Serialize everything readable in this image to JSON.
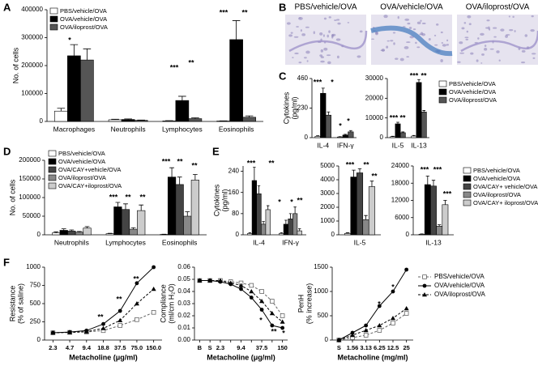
{
  "chart_data": [
    {
      "type": "bar",
      "panel": "A",
      "y_label": [
        "No. of cells"
      ],
      "categories": [
        "Macrophages",
        "Neutrophils",
        "Lymphocytes",
        "Eosinophils"
      ],
      "ylim": [
        0,
        400000
      ],
      "yticks": [
        0,
        100000,
        200000,
        300000,
        400000
      ],
      "series": [
        {
          "name": "PBS/vehicle/OVA",
          "color": "#ffffff",
          "values": [
            37000,
            6000,
            2000,
            1500
          ],
          "errors": [
            10000,
            2000,
            1000,
            500
          ]
        },
        {
          "name": "OVA/vehicle/OVA",
          "color": "#000000",
          "values": [
            235000,
            7000,
            75000,
            293000
          ],
          "errors": [
            40000,
            2000,
            15000,
            68000
          ]
        },
        {
          "name": "OVA/iloprost/OVA",
          "color": "#555555",
          "values": [
            220000,
            4000,
            10000,
            15000
          ],
          "errors": [
            40000,
            1000,
            3000,
            5000
          ]
        }
      ],
      "annotations": [
        "*",
        "***",
        "**",
        "***",
        "**"
      ]
    },
    {
      "type": "image",
      "panel": "B",
      "titles": [
        "PBS/vehicle/OVA",
        "OVA/vehicle/OVA",
        "OVA/iloprost/OVA"
      ]
    },
    {
      "type": "bar",
      "panel": "C",
      "y_label": [
        "Cytokines",
        "(pg/ml)"
      ],
      "categories": [
        "IL-4",
        "IFN-γ"
      ],
      "ylim": [
        0,
        460
      ],
      "yticks": [
        0,
        230,
        460
      ],
      "series": [
        {
          "color": "#ffffff",
          "values": [
            10,
            5
          ],
          "errors": [
            5,
            3
          ]
        },
        {
          "color": "#000000",
          "values": [
            345,
            20
          ],
          "errors": [
            40,
            6
          ]
        },
        {
          "color": "#555555",
          "values": [
            175,
            45
          ],
          "errors": [
            25,
            10
          ]
        }
      ],
      "annotations": [
        "***",
        "*",
        "*",
        "*"
      ]
    },
    {
      "type": "bar",
      "categories": [
        "IL-5",
        "IL-13"
      ],
      "ylim": [
        0,
        30000
      ],
      "yticks": [
        0,
        10000,
        20000,
        30000
      ],
      "series": [
        {
          "name": "PBS/vehicle/OVA",
          "color": "#ffffff",
          "values": [
            500,
            800
          ],
          "errors": [
            200,
            300
          ]
        },
        {
          "name": "OVA/vehicle/OVA",
          "color": "#000000",
          "values": [
            7000,
            28000
          ],
          "errors": [
            800,
            1500
          ]
        },
        {
          "name": "OVA/iloprost/OVA",
          "color": "#555555",
          "values": [
            2500,
            13000
          ],
          "errors": [
            400,
            800
          ]
        }
      ],
      "annotations": [
        "***",
        "**",
        "***",
        "**"
      ]
    },
    {
      "type": "bar",
      "panel": "D",
      "y_label": [
        "No. of cells"
      ],
      "categories": [
        "Neutrophils",
        "Lymphocytes",
        "Eosinophils"
      ],
      "ylim": [
        0,
        200000
      ],
      "yticks": [
        0,
        50000,
        100000,
        150000,
        200000
      ],
      "series": [
        {
          "name": "PBS/vehicle/OVA",
          "color": "#ffffff",
          "values": [
            5000,
            3000,
            1000
          ],
          "errors": [
            3000,
            1000,
            500
          ]
        },
        {
          "name": "OVA/vehicle/OVA",
          "color": "#000000",
          "values": [
            12000,
            75000,
            155000
          ],
          "errors": [
            4000,
            12000,
            25000
          ]
        },
        {
          "name": "OVA/CAY+vehicle/OVA",
          "color": "#444444",
          "values": [
            10000,
            68000,
            135000
          ],
          "errors": [
            3000,
            15000,
            20000
          ]
        },
        {
          "name": "OVA/iloprost/OVA",
          "color": "#888888",
          "values": [
            7000,
            15000,
            50000
          ],
          "errors": [
            2000,
            4000,
            12000
          ]
        },
        {
          "name": "OVA/CAY+iloprost/OVA",
          "color": "#cccccc",
          "values": [
            18000,
            65000,
            147000
          ],
          "errors": [
            4000,
            15000,
            15000
          ]
        }
      ],
      "annotations": [
        "***",
        "**",
        "**",
        "***",
        "**",
        "**"
      ]
    },
    {
      "type": "bar",
      "panel": "E",
      "y_label": [
        "Cytokines",
        "(pg/ml)"
      ],
      "categories": [
        "IL-4",
        "IFN-γ"
      ],
      "ylim": [
        0,
        260
      ],
      "yticks": [
        0,
        80,
        160,
        240
      ],
      "series": [
        {
          "color": "#ffffff",
          "values": [
            5,
            5
          ],
          "errors": [
            3,
            3
          ]
        },
        {
          "color": "#000000",
          "values": [
            205,
            40
          ],
          "errors": [
            50,
            15
          ]
        },
        {
          "color": "#444444",
          "values": [
            155,
            60
          ],
          "errors": [
            30,
            20
          ]
        },
        {
          "color": "#888888",
          "values": [
            40,
            80
          ],
          "errors": [
            10,
            25
          ]
        },
        {
          "color": "#cccccc",
          "values": [
            95,
            15
          ],
          "errors": [
            15,
            8
          ]
        }
      ],
      "annotations": [
        "***",
        "**",
        "**",
        "*",
        "*"
      ]
    },
    {
      "type": "bar",
      "categories": [
        "IL-5"
      ],
      "ylim": [
        0,
        5000
      ],
      "yticks": [
        0,
        1000,
        2000,
        3000,
        4000,
        5000
      ],
      "series": [
        {
          "color": "#ffffff",
          "values": [
            100
          ],
          "errors": [
            50
          ]
        },
        {
          "color": "#000000",
          "values": [
            4200
          ],
          "errors": [
            500
          ]
        },
        {
          "color": "#444444",
          "values": [
            4500
          ],
          "errors": [
            300
          ]
        },
        {
          "color": "#888888",
          "values": [
            1100
          ],
          "errors": [
            300
          ]
        },
        {
          "color": "#cccccc",
          "values": [
            3500
          ],
          "errors": [
            400
          ]
        }
      ],
      "annotations": [
        "***",
        "**",
        "**"
      ]
    },
    {
      "type": "bar",
      "categories": [
        "IL-13"
      ],
      "ylim": [
        0,
        24000
      ],
      "yticks": [
        0,
        6000,
        12000,
        18000,
        24000
      ],
      "series": [
        {
          "name": "PBS/vehicle/OVA",
          "color": "#ffffff",
          "values": [
            200
          ],
          "errors": [
            100
          ]
        },
        {
          "name": "OVA/vehicle/OVA",
          "color": "#000000",
          "values": [
            17500
          ],
          "errors": [
            3000
          ]
        },
        {
          "name": "OVA/CAY+ vehicle/OVA",
          "color": "#444444",
          "values": [
            17000
          ],
          "errors": [
            2000
          ]
        },
        {
          "name": "OVA/iloprost/OVA",
          "color": "#888888",
          "values": [
            3000
          ],
          "errors": [
            500
          ]
        },
        {
          "name": "OVA/CAY+ iloprost/OVA",
          "color": "#cccccc",
          "values": [
            10500
          ],
          "errors": [
            1500
          ]
        }
      ],
      "annotations": [
        "***",
        "***",
        "***"
      ]
    },
    {
      "type": "line",
      "panel": "F",
      "y_label": [
        "Resistance",
        "(% of saline)"
      ],
      "x_label": "Metacholine (μg/ml)",
      "categories": [
        "2.3",
        "4.7",
        "9.4",
        "18.8",
        "37.5",
        "75.0",
        "150.0"
      ],
      "ylim": [
        0,
        1000
      ],
      "yticks": [
        0,
        250,
        500,
        750,
        1000
      ],
      "series": [
        {
          "color": "#666666",
          "marker": "open-square",
          "dash": true,
          "values": [
            100,
            105,
            110,
            130,
            200,
            280,
            380
          ]
        },
        {
          "color": "#000000",
          "marker": "circle",
          "dash": false,
          "values": [
            100,
            110,
            130,
            220,
            400,
            780,
            1000
          ]
        },
        {
          "color": "#000000",
          "marker": "triangle",
          "dash": true,
          "values": [
            100,
            105,
            115,
            160,
            270,
            500,
            700
          ]
        }
      ],
      "annotations": [
        "**",
        "**",
        "**"
      ]
    },
    {
      "type": "line",
      "y_label": [
        "Compliance",
        "(ml/cm H₂O)"
      ],
      "x_label": "Metacholine (μg/ml)",
      "categories": [
        "B",
        "S",
        "2.3",
        null,
        "9.4",
        null,
        "37.5",
        null,
        "150"
      ],
      "ylim": [
        0,
        0.06
      ],
      "yticks": [
        {
          "value": 0,
          "label": "0.00"
        },
        {
          "value": 0.01,
          "label": "0.01"
        },
        {
          "value": 0.02,
          "label": "0.02"
        },
        {
          "value": 0.03,
          "label": "0.03"
        },
        {
          "value": 0.04,
          "label": "0.04"
        },
        {
          "value": 0.05,
          "label": "0.05"
        },
        {
          "value": 0.06,
          "label": "0.06"
        }
      ],
      "series": [
        {
          "color": "#666666",
          "marker": "open-square",
          "dash": true,
          "values": [
            0.049,
            0.049,
            0.049,
            0.048,
            0.047,
            0.045,
            0.04,
            0.032,
            0.02
          ]
        },
        {
          "color": "#000000",
          "marker": "circle",
          "dash": false,
          "values": [
            0.049,
            0.049,
            0.048,
            0.046,
            0.042,
            0.035,
            0.025,
            0.012,
            0.01
          ]
        },
        {
          "color": "#000000",
          "marker": "triangle",
          "dash": true,
          "values": [
            0.049,
            0.049,
            0.049,
            0.047,
            0.045,
            0.04,
            0.032,
            0.022,
            0.015
          ]
        }
      ],
      "annotations": [
        "*",
        "**",
        "*"
      ]
    },
    {
      "type": "line",
      "y_label": [
        "PenH",
        "(% increase)"
      ],
      "x_label": "Metacholine (mg/ml)",
      "categories": [
        "S",
        "1.56",
        "3.13",
        "6.25",
        "12.5",
        "25"
      ],
      "ylim": [
        0,
        1500
      ],
      "yticks": [
        0,
        500,
        1000,
        1500
      ],
      "series": [
        {
          "name": "PBS/vehicle/OVA",
          "color": "#666666",
          "marker": "open-square",
          "dash": true,
          "values": [
            0,
            50,
            100,
            200,
            350,
            550
          ]
        },
        {
          "name": "OVA/vehicle/OVA",
          "color": "#000000",
          "marker": "circle",
          "dash": false,
          "values": [
            0,
            150,
            300,
            700,
            1000,
            1450
          ]
        },
        {
          "name": "OVA/iloprost/OVA",
          "color": "#000000",
          "marker": "triangle",
          "dash": true,
          "values": [
            0,
            100,
            200,
            300,
            450,
            650
          ]
        }
      ],
      "annotations": [
        "*",
        "*",
        "*"
      ]
    }
  ]
}
